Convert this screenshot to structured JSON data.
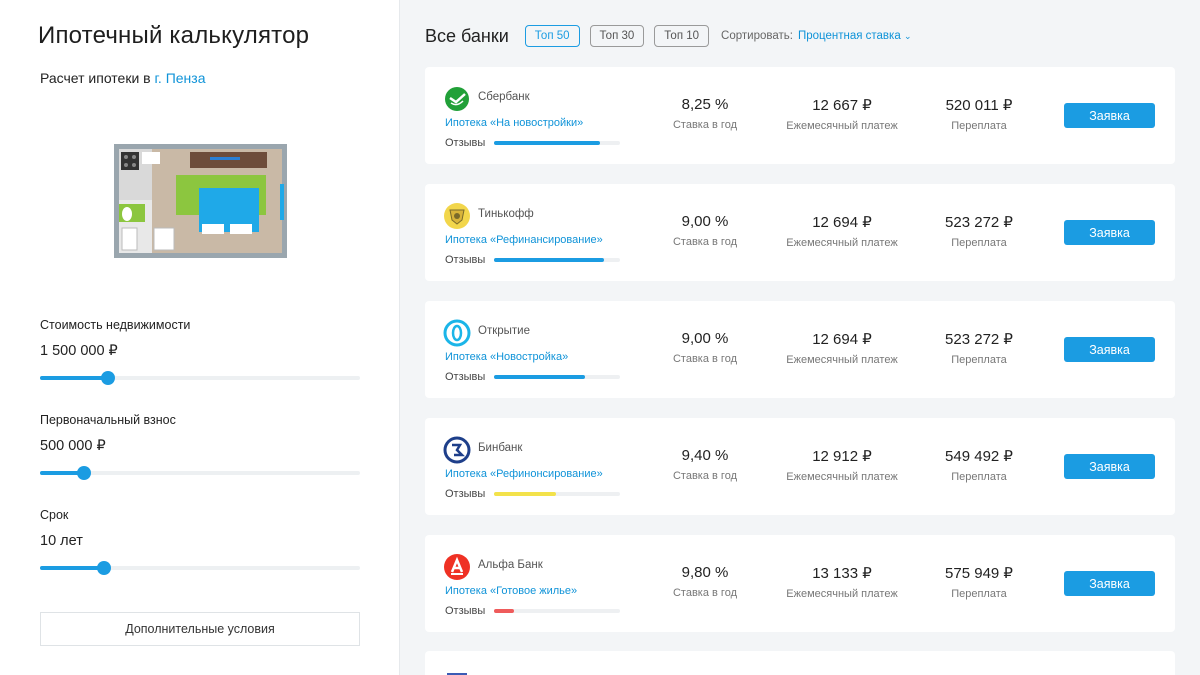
{
  "calculator": {
    "title": "Ипотечный калькулятор",
    "city_prefix": "Расчет ипотеки в",
    "city_link": "г. Пенза",
    "fields": [
      {
        "label": "Стоимость недвижимости",
        "value": "1 500 000 ₽",
        "slider_fraction": 0.213
      },
      {
        "label": "Первоначальный взнос",
        "value": "500 000 ₽",
        "slider_fraction": 0.138
      },
      {
        "label": "Срок",
        "value": "10 лет",
        "slider_fraction": 0.2
      }
    ],
    "extra_button": "Дополнительные условия"
  },
  "list": {
    "title": "Все банки",
    "tabs": [
      {
        "label": "Топ 50",
        "active": true
      },
      {
        "label": "Топ 30",
        "active": false
      },
      {
        "label": "Топ 10",
        "active": false
      }
    ],
    "sort_label": "Сортировать:",
    "sort_value": "Процентная ставка",
    "rate_caption": "Ставка в год",
    "payment_caption": "Ежемесячный платеж",
    "overpay_caption": "Переплата",
    "reviews_label": "Отзывы",
    "apply_label": "Заявка"
  },
  "banks": [
    {
      "name": "Сбербанк",
      "product": "Ипотека «На новостройки»",
      "rate": "8,25 %",
      "payment": "12 667 ₽",
      "overpay": "520 011 ₽",
      "reviews_fraction": 0.84,
      "reviews_color": "#1b9ce2",
      "logo": "sberbank-logo",
      "logo_color": "#21a038"
    },
    {
      "name": "Тинькофф",
      "product": "Ипотека «Рефинансирование»",
      "rate": "9,00 %",
      "payment": "12 694 ₽",
      "overpay": "523 272 ₽",
      "reviews_fraction": 0.87,
      "reviews_color": "#1b9ce2",
      "logo": "tinkoff-logo",
      "logo_color": "#f2d64b"
    },
    {
      "name": "Открытие",
      "product": "Ипотека «Новостройка»",
      "rate": "9,00 %",
      "payment": "12 694 ₽",
      "overpay": "523 272 ₽",
      "reviews_fraction": 0.72,
      "reviews_color": "#1b9ce2",
      "logo": "otkritie-logo",
      "logo_color": "#1bb5e8"
    },
    {
      "name": "Бинбанк",
      "product": "Ипотека «Рефинонсирование»",
      "rate": "9,40 %",
      "payment": "12 912 ₽",
      "overpay": "549 492 ₽",
      "reviews_fraction": 0.49,
      "reviews_color": "#f3e24a",
      "logo": "binbank-logo",
      "logo_color": "#1e3f8a"
    },
    {
      "name": "Альфа Банк",
      "product": "Ипотека «Готовое жилье»",
      "rate": "9,80 %",
      "payment": "13 133 ₽",
      "overpay": "575 949 ₽",
      "reviews_fraction": 0.16,
      "reviews_color": "#ef5b5b",
      "logo": "alfabank-logo",
      "logo_color": "#ef3124"
    }
  ]
}
